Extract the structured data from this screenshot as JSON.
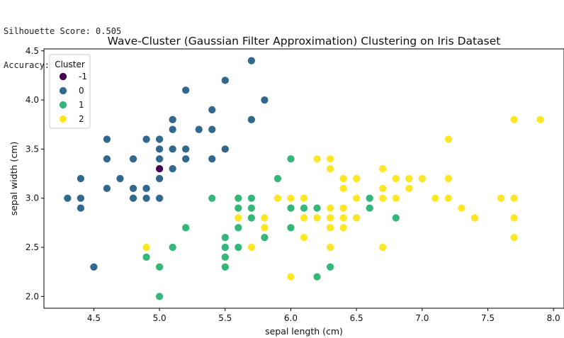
{
  "console": {
    "line1": "Silhouette Score: 0.505",
    "line2": "Accuracy: 0.993"
  },
  "chart_data": {
    "type": "scatter",
    "title": "Wave-Cluster (Gaussian Filter Approximation) Clustering on Iris Dataset",
    "xlabel": "sepal length (cm)",
    "ylabel": "sepal width (cm)",
    "xlim": [
      4.12,
      8.08
    ],
    "ylim": [
      1.88,
      4.52
    ],
    "xticks": [
      "4.5",
      "5.0",
      "5.5",
      "6.0",
      "6.5",
      "7.0",
      "7.5",
      "8.0"
    ],
    "yticks": [
      "2.0",
      "2.5",
      "3.0",
      "3.5",
      "4.0",
      "4.5"
    ],
    "grid": false,
    "legend": {
      "title": "Cluster",
      "placement": "top-left"
    },
    "series": [
      {
        "name": "-1",
        "color": "#440154",
        "points": [
          [
            5.0,
            3.3
          ],
          [
            7.0,
            3.2
          ]
        ]
      },
      {
        "name": "0",
        "color": "#31688e",
        "points": [
          [
            5.1,
            3.5
          ],
          [
            4.9,
            3.0
          ],
          [
            4.7,
            3.2
          ],
          [
            4.6,
            3.1
          ],
          [
            5.0,
            3.6
          ],
          [
            5.4,
            3.9
          ],
          [
            4.6,
            3.4
          ],
          [
            5.0,
            3.4
          ],
          [
            4.4,
            2.9
          ],
          [
            4.9,
            3.1
          ],
          [
            5.4,
            3.7
          ],
          [
            4.8,
            3.4
          ],
          [
            4.8,
            3.0
          ],
          [
            4.3,
            3.0
          ],
          [
            5.8,
            4.0
          ],
          [
            5.7,
            4.4
          ],
          [
            5.1,
            3.8
          ],
          [
            5.7,
            3.8
          ],
          [
            5.4,
            3.4
          ],
          [
            5.1,
            3.7
          ],
          [
            4.6,
            3.6
          ],
          [
            5.1,
            3.3
          ],
          [
            5.2,
            3.5
          ],
          [
            5.2,
            3.4
          ],
          [
            4.8,
            3.1
          ],
          [
            5.2,
            4.1
          ],
          [
            5.5,
            4.2
          ],
          [
            5.0,
            3.2
          ],
          [
            5.5,
            3.5
          ],
          [
            4.4,
            3.0
          ],
          [
            4.5,
            2.3
          ],
          [
            4.4,
            3.2
          ],
          [
            5.0,
            3.5
          ],
          [
            5.3,
            3.7
          ],
          [
            5.0,
            3.0
          ],
          [
            4.9,
            3.6
          ]
        ]
      },
      {
        "name": "1",
        "color": "#35b779",
        "points": [
          [
            5.4,
            3.0
          ],
          [
            5.5,
            2.3
          ],
          [
            4.9,
            2.4
          ],
          [
            5.7,
            2.8
          ],
          [
            5.0,
            2.3
          ],
          [
            5.9,
            3.0
          ],
          [
            6.0,
            2.2
          ],
          [
            6.1,
            2.9
          ],
          [
            5.6,
            2.9
          ],
          [
            5.6,
            3.0
          ],
          [
            5.8,
            2.7
          ],
          [
            6.2,
            2.2
          ],
          [
            5.6,
            2.5
          ],
          [
            5.9,
            3.2
          ],
          [
            6.1,
            2.8
          ],
          [
            6.6,
            3.0
          ],
          [
            6.8,
            2.8
          ],
          [
            5.5,
            2.4
          ],
          [
            5.5,
            2.5
          ],
          [
            5.8,
            2.7
          ],
          [
            5.4,
            3.0
          ],
          [
            6.0,
            3.4
          ],
          [
            6.3,
            2.3
          ],
          [
            5.6,
            3.0
          ],
          [
            5.5,
            2.6
          ],
          [
            6.1,
            3.0
          ],
          [
            5.8,
            2.6
          ],
          [
            5.0,
            2.0
          ],
          [
            5.6,
            2.7
          ],
          [
            5.7,
            3.0
          ],
          [
            5.7,
            2.9
          ],
          [
            6.2,
            2.9
          ],
          [
            5.1,
            2.5
          ],
          [
            5.7,
            2.8
          ],
          [
            6.0,
            2.9
          ],
          [
            6.6,
            2.9
          ],
          [
            5.2,
            2.7
          ],
          [
            5.9,
            3.0
          ],
          [
            6.0,
            2.7
          ],
          [
            6.4,
            2.9
          ],
          [
            6.5,
            2.8
          ],
          [
            6.2,
            2.8
          ]
        ]
      },
      {
        "name": "2",
        "color": "#fde725",
        "points": [
          [
            7.0,
            3.2
          ],
          [
            6.4,
            3.2
          ],
          [
            6.9,
            3.1
          ],
          [
            6.5,
            2.8
          ],
          [
            6.3,
            3.3
          ],
          [
            6.7,
            3.1
          ],
          [
            6.3,
            2.5
          ],
          [
            6.1,
            2.8
          ],
          [
            6.4,
            2.9
          ],
          [
            6.7,
            3.0
          ],
          [
            6.0,
            2.2
          ],
          [
            6.1,
            2.6
          ],
          [
            6.7,
            3.3
          ],
          [
            6.3,
            3.3
          ],
          [
            5.8,
            2.7
          ],
          [
            7.1,
            3.0
          ],
          [
            6.3,
            2.9
          ],
          [
            6.5,
            3.0
          ],
          [
            7.6,
            3.0
          ],
          [
            4.9,
            2.5
          ],
          [
            7.3,
            2.9
          ],
          [
            6.7,
            2.5
          ],
          [
            7.2,
            3.6
          ],
          [
            6.5,
            3.2
          ],
          [
            6.4,
            2.7
          ],
          [
            6.8,
            3.0
          ],
          [
            5.7,
            2.5
          ],
          [
            5.8,
            2.8
          ],
          [
            6.4,
            3.2
          ],
          [
            6.5,
            3.0
          ],
          [
            7.7,
            3.8
          ],
          [
            7.7,
            2.6
          ],
          [
            6.0,
            2.2
          ],
          [
            6.9,
            3.2
          ],
          [
            5.6,
            2.8
          ],
          [
            7.7,
            2.8
          ],
          [
            6.3,
            2.7
          ],
          [
            6.7,
            3.3
          ],
          [
            7.2,
            3.2
          ],
          [
            6.2,
            2.8
          ],
          [
            6.1,
            3.0
          ],
          [
            6.4,
            2.8
          ],
          [
            7.2,
            3.0
          ],
          [
            7.4,
            2.8
          ],
          [
            7.9,
            3.8
          ],
          [
            6.4,
            2.8
          ],
          [
            6.3,
            2.8
          ],
          [
            6.1,
            2.6
          ],
          [
            7.7,
            3.0
          ],
          [
            6.3,
            3.4
          ],
          [
            6.4,
            3.1
          ],
          [
            6.0,
            3.0
          ],
          [
            6.9,
            3.1
          ],
          [
            6.7,
            3.1
          ],
          [
            6.9,
            3.1
          ],
          [
            5.8,
            2.7
          ],
          [
            6.8,
            3.2
          ],
          [
            6.7,
            3.3
          ],
          [
            6.7,
            3.0
          ],
          [
            6.3,
            2.5
          ],
          [
            6.5,
            3.0
          ],
          [
            6.2,
            3.4
          ],
          [
            5.9,
            3.0
          ],
          [
            6.3,
            2.7
          ]
        ]
      }
    ]
  }
}
